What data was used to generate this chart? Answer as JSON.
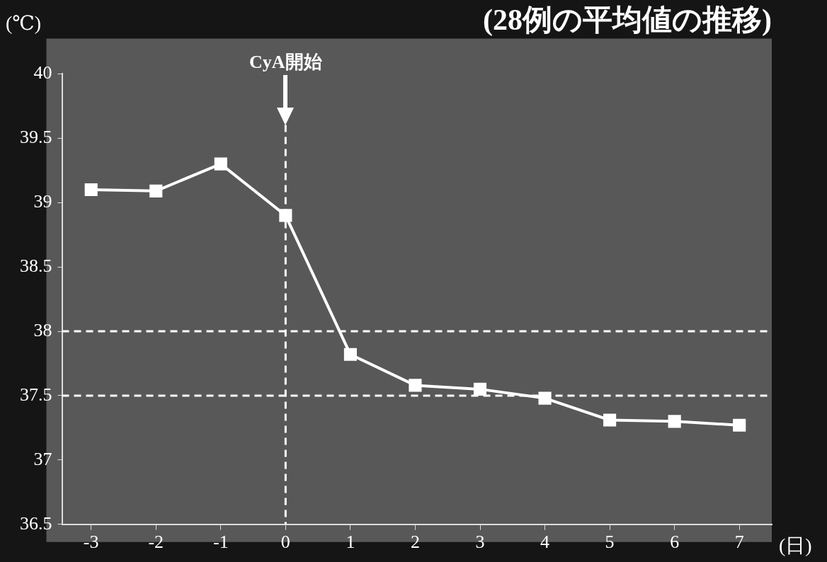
{
  "chart_data": {
    "type": "line",
    "title": "(28例の平均値の推移)",
    "xlabel": "(日)",
    "ylabel": "(℃)",
    "x": [
      -3,
      -2,
      -1,
      0,
      1,
      2,
      3,
      4,
      5,
      6,
      7
    ],
    "series": [
      {
        "color": "#ffffff",
        "values": [
          39.1,
          39.09,
          39.3,
          38.9,
          37.82,
          37.58,
          37.55,
          37.48,
          37.31,
          37.3,
          37.27
        ]
      }
    ],
    "xlim": [
      -3.45,
      7.5
    ],
    "xticks": [
      -3,
      -2,
      -1,
      0,
      1,
      2,
      3,
      4,
      5,
      6,
      7
    ],
    "ylim": [
      36.5,
      40
    ],
    "yticks": [
      36.5,
      37,
      37.5,
      38,
      38.5,
      39,
      39.5,
      40
    ],
    "ref_lines": [
      {
        "axis": "x",
        "value": 0,
        "label": "CyA開始",
        "line_style": "dashed",
        "color": "#ffffff"
      },
      {
        "axis": "y",
        "value": 38,
        "line_style": "dashed",
        "color": "#ffffff"
      },
      {
        "axis": "y",
        "value": 37.5,
        "line_style": "dashed",
        "color": "#ffffff"
      }
    ],
    "marker": "square",
    "line_style": "solid",
    "grid": false,
    "legend": false
  }
}
